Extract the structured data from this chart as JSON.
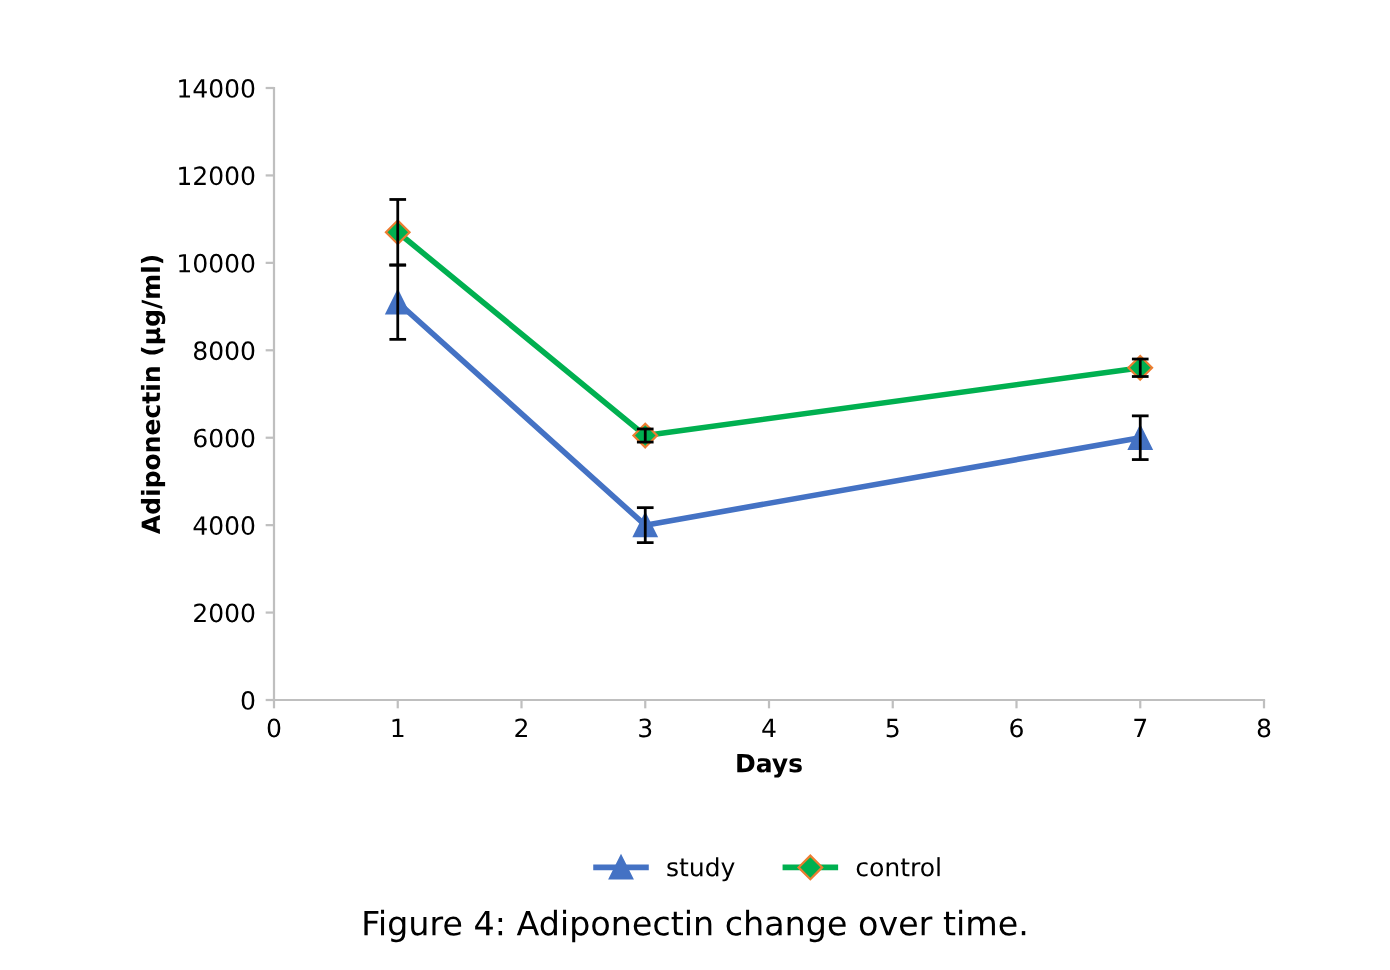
{
  "chart_data": {
    "type": "line",
    "title": "Figure 4: Adiponectin change over time.",
    "xlabel": "Days",
    "ylabel": "Adiponectin (µg/ml)",
    "x": [
      1,
      3,
      7
    ],
    "series": [
      {
        "name": "study",
        "color": "#4472c4",
        "marker": "triangle",
        "values": [
          9100,
          4000,
          6000
        ],
        "errors": [
          850,
          400,
          500
        ]
      },
      {
        "name": "control",
        "color": "#00b050",
        "marker": "diamond",
        "values": [
          10700,
          6050,
          7600
        ],
        "errors": [
          750,
          150,
          200
        ]
      }
    ],
    "xlim": [
      0,
      8
    ],
    "xticks": [
      0,
      1,
      2,
      3,
      4,
      5,
      6,
      7,
      8
    ],
    "ylim": [
      0,
      14000
    ],
    "yticks": [
      0,
      2000,
      4000,
      6000,
      8000,
      10000,
      12000,
      14000
    ],
    "grid": false,
    "legend": "bottom",
    "line_style": "solid"
  }
}
